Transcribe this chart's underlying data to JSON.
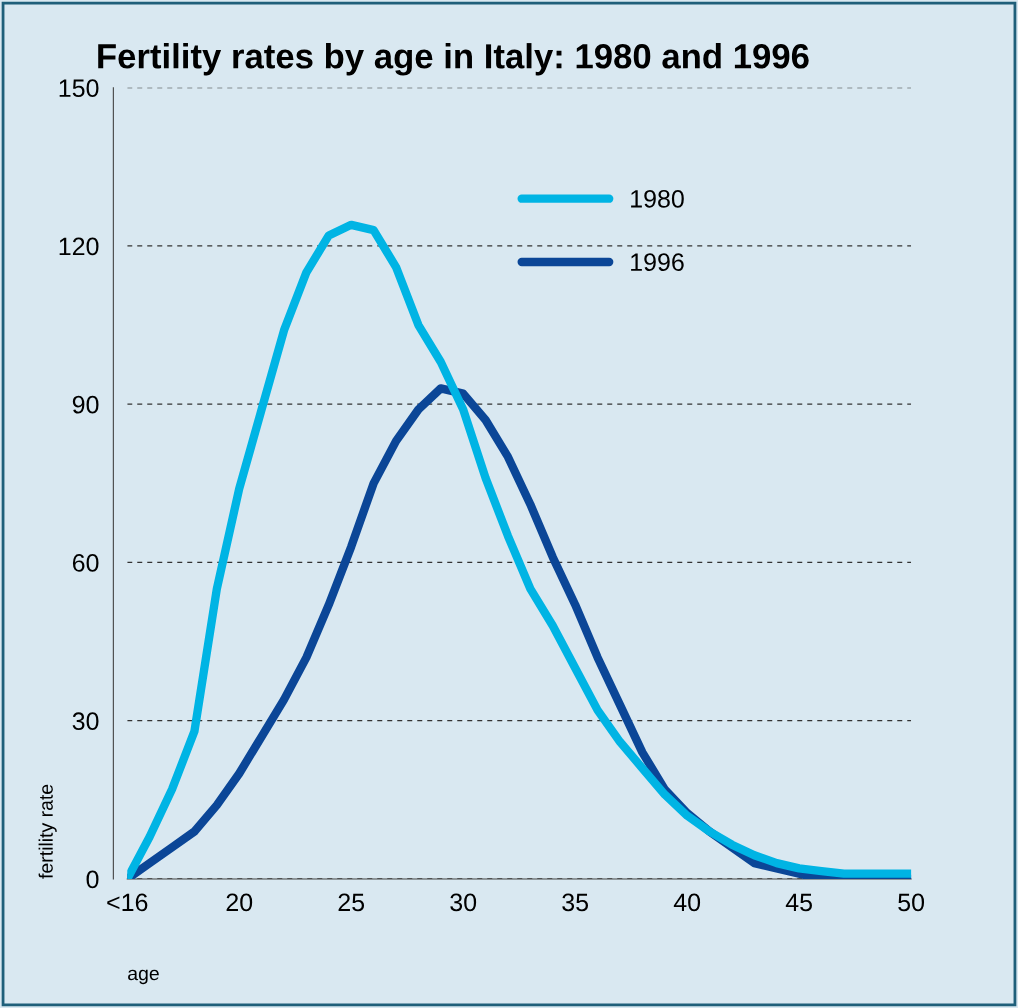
{
  "chart_data": {
    "type": "line",
    "title": "Fertility rates by age in Italy: 1980 and 1996",
    "xlabel": "age",
    "ylabel": "fertility rate",
    "x": [
      15,
      16,
      17,
      18,
      19,
      20,
      21,
      22,
      23,
      24,
      25,
      26,
      27,
      28,
      29,
      30,
      31,
      32,
      33,
      34,
      35,
      36,
      37,
      38,
      39,
      40,
      41,
      42,
      43,
      44,
      45,
      46,
      47,
      48,
      49,
      50
    ],
    "series": [
      {
        "name": "1980",
        "color": "#00b4e4",
        "values": [
          0,
          8,
          17,
          28,
          55,
          74,
          89,
          104,
          115,
          122,
          124,
          123,
          116,
          105,
          98,
          89,
          76,
          65,
          55,
          48,
          40,
          32,
          26,
          21,
          16,
          12,
          9,
          6.5,
          4.5,
          3,
          2,
          1.5,
          1,
          1,
          1,
          1
        ]
      },
      {
        "name": "1996",
        "color": "#0b4697",
        "values": [
          0,
          3,
          6,
          9,
          14,
          20,
          27,
          34,
          42,
          52,
          63,
          75,
          83,
          89,
          93,
          92,
          87,
          80,
          71,
          61,
          52,
          42,
          33,
          24,
          17,
          12.5,
          9,
          6,
          3,
          2,
          1,
          0,
          0,
          0,
          0,
          0
        ]
      }
    ],
    "xlim": [
      15,
      50
    ],
    "xticks": [
      {
        "value": 15,
        "label": "<16"
      },
      20,
      25,
      30,
      35,
      40,
      45,
      50
    ],
    "ylim": [
      0,
      150
    ],
    "yticks": [
      0,
      30,
      60,
      90,
      120,
      150
    ],
    "grid": "y",
    "legend": "top right",
    "line_style": "solid",
    "marker": "none"
  }
}
